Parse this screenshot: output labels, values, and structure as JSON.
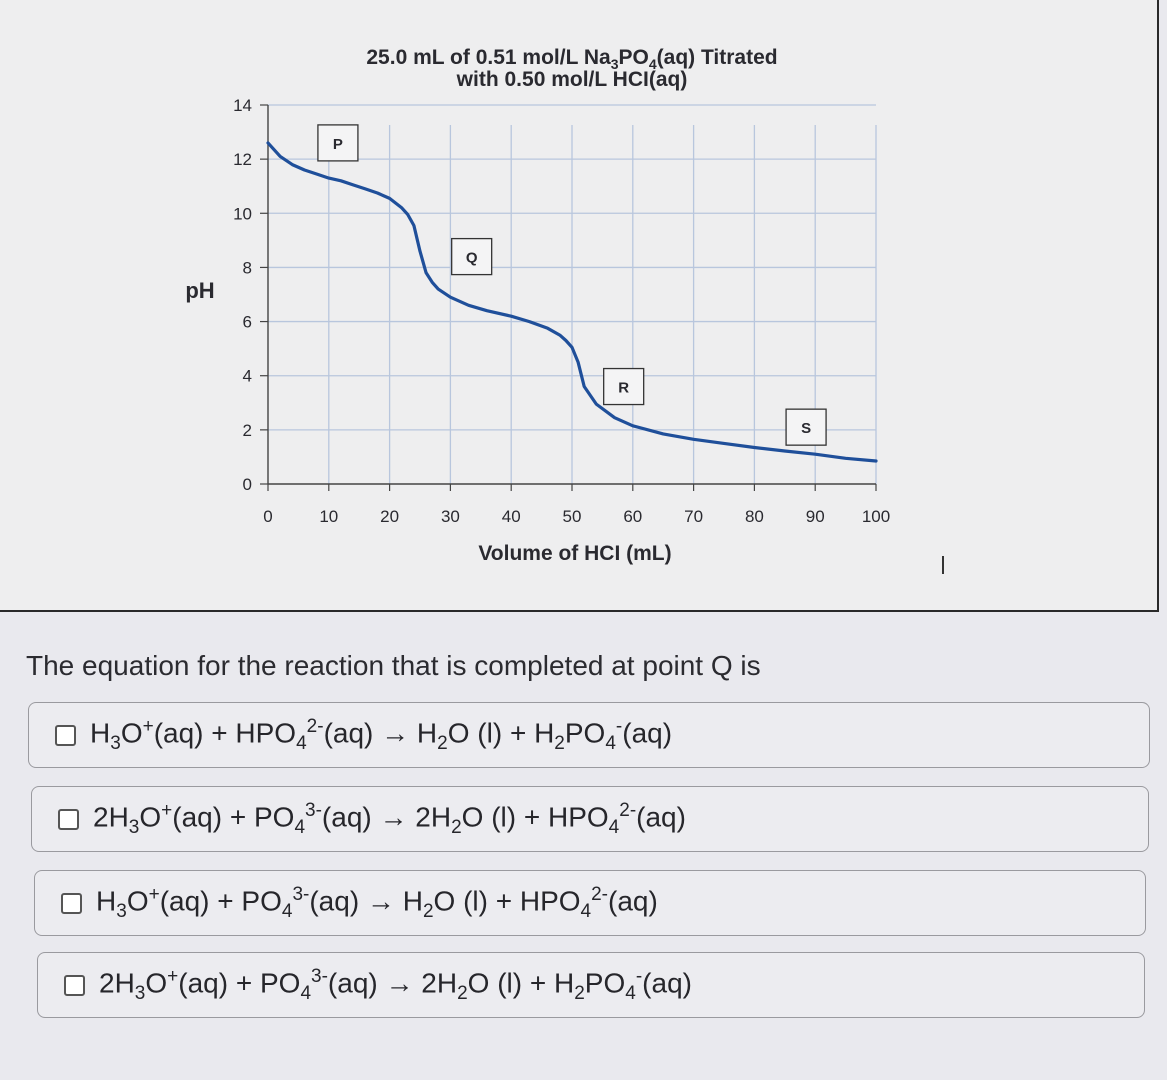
{
  "chart_data": {
    "type": "line",
    "title_line1": "25.0 mL of 0.51 mol/L Na",
    "title_sub1": "3",
    "title_mid": "PO",
    "title_sub2": "4",
    "title_end": "(aq) Titrated",
    "title_line2": "with 0.50 mol/L HCI(aq)",
    "xlabel": "Volume of HCI (mL)",
    "ylabel": "pH",
    "xlim": [
      0,
      100
    ],
    "ylim": [
      0,
      14
    ],
    "xticks": [
      0,
      10,
      20,
      30,
      40,
      50,
      60,
      70,
      80,
      90,
      100
    ],
    "yticks": [
      0,
      2,
      4,
      6,
      8,
      10,
      12,
      14
    ],
    "grid": true,
    "series": [
      {
        "color": "#1f4f9a",
        "x": [
          0,
          2,
          4,
          6,
          8,
          10,
          12,
          14,
          16,
          18,
          20,
          22,
          23,
          24,
          25,
          26,
          27,
          28,
          30,
          33,
          36,
          40,
          43,
          46,
          48,
          49,
          50,
          51,
          52,
          54,
          57,
          60,
          65,
          70,
          75,
          80,
          85,
          90,
          95,
          100
        ],
        "y": [
          12.6,
          12.1,
          11.8,
          11.6,
          11.45,
          11.3,
          11.2,
          11.05,
          10.9,
          10.75,
          10.55,
          10.2,
          9.95,
          9.55,
          8.6,
          7.8,
          7.45,
          7.2,
          6.9,
          6.6,
          6.4,
          6.2,
          6.0,
          5.75,
          5.5,
          5.3,
          5.05,
          4.5,
          3.6,
          2.95,
          2.45,
          2.15,
          1.85,
          1.65,
          1.5,
          1.35,
          1.22,
          1.1,
          0.95,
          0.85
        ]
      }
    ],
    "annotations": [
      {
        "label": "P",
        "x": 11.5,
        "y": 12.6
      },
      {
        "label": "Q",
        "x": 33.5,
        "y": 8.4
      },
      {
        "label": "R",
        "x": 58.5,
        "y": 3.6
      },
      {
        "label": "S",
        "x": 88.5,
        "y": 2.1
      }
    ]
  },
  "question": "The equation for the reaction that is completed at point Q is",
  "options": [
    {
      "html": "H<sub>3</sub>O<sup>+</sup>(aq) + HPO<sub>4</sub><sup>2-</sup>(aq) → H<sub>2</sub>O (l) + H<sub>2</sub>PO<sub>4</sub><sup>-</sup>(aq)"
    },
    {
      "html": "2H<sub>3</sub>O<sup>+</sup>(aq) + PO<sub>4</sub><sup>3-</sup>(aq) → 2H<sub>2</sub>O (l) + HPO<sub>4</sub><sup>2-</sup>(aq)"
    },
    {
      "html": "H<sub>3</sub>O<sup>+</sup>(aq) + PO<sub>4</sub><sup>3-</sup>(aq) → H<sub>2</sub>O (l) + HPO<sub>4</sub><sup>2-</sup>(aq)"
    },
    {
      "html": "2H<sub>3</sub>O<sup>+</sup>(aq) + PO<sub>4</sub><sup>3-</sup>(aq) → 2H<sub>2</sub>O (l) + H<sub>2</sub>PO<sub>4</sub><sup>-</sup>(aq)"
    }
  ]
}
